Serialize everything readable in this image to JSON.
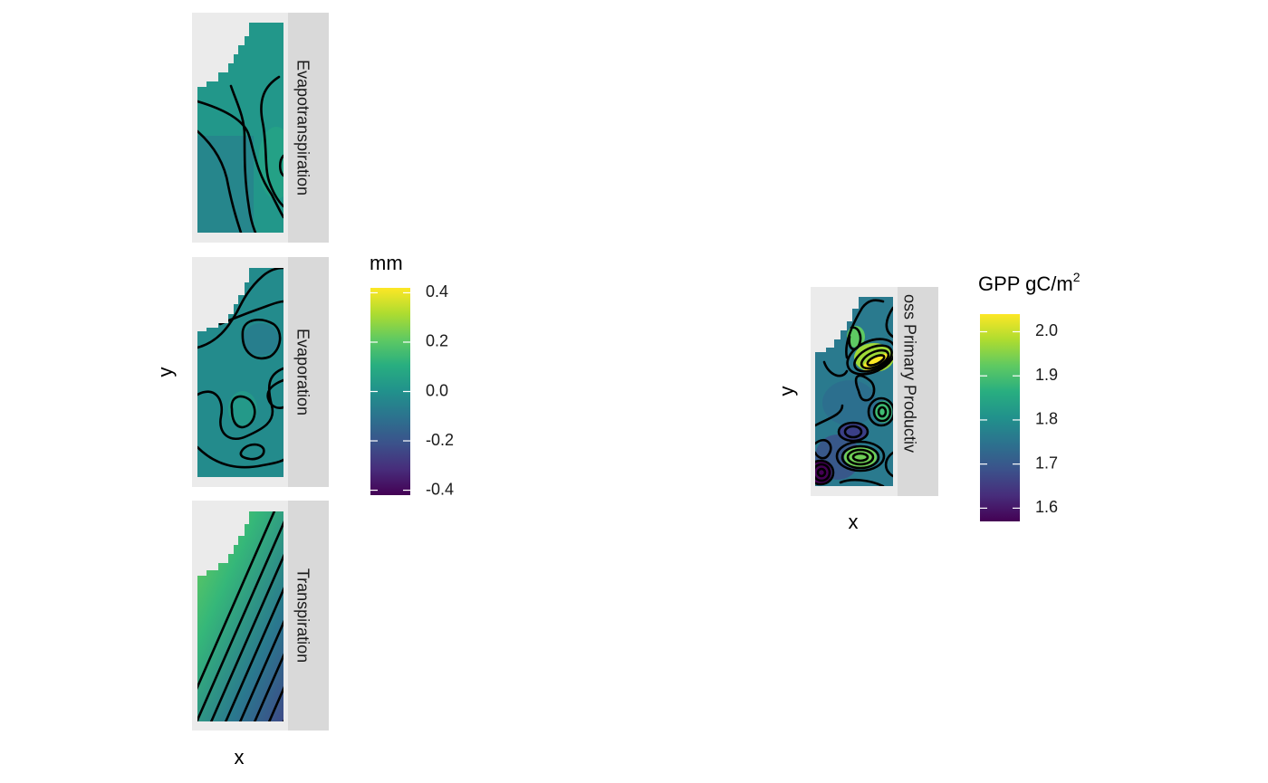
{
  "chart_data": [
    {
      "type": "heatmap",
      "subtype": "faceted raster with contour lines",
      "xlabel": "x",
      "ylabel": "y",
      "facets": [
        "Evapotranspiration",
        "Evaporation",
        "Transpiration"
      ],
      "colorscale": "viridis",
      "legend": {
        "title": "mm",
        "min": -0.42,
        "max": 0.42,
        "ticks": [
          0.4,
          0.2,
          0.0,
          -0.2,
          -0.4
        ],
        "tick_labels": [
          "0.4",
          "0.2",
          "0.0",
          "-0.2",
          "-0.4"
        ],
        "placement": "right"
      },
      "facet_fill_levels": {
        "Evapotranspiration": 0.02,
        "Evaporation": -0.02,
        "Transpiration": {
          "from": 0.18,
          "to": -0.25
        }
      }
    },
    {
      "type": "heatmap",
      "subtype": "raster with contour lines",
      "xlabel": "x",
      "ylabel": "y",
      "facets": [
        "oss Primary Productiv"
      ],
      "colorscale": "viridis",
      "legend": {
        "title_main": "GPP gC/m",
        "title_sup": "2",
        "min": 1.57,
        "max": 2.04,
        "ticks": [
          2.0,
          1.9,
          1.8,
          1.7,
          1.6
        ],
        "tick_labels": [
          "2.0",
          "1.9",
          "1.8",
          "1.7",
          "1.6"
        ],
        "placement": "right"
      }
    }
  ]
}
